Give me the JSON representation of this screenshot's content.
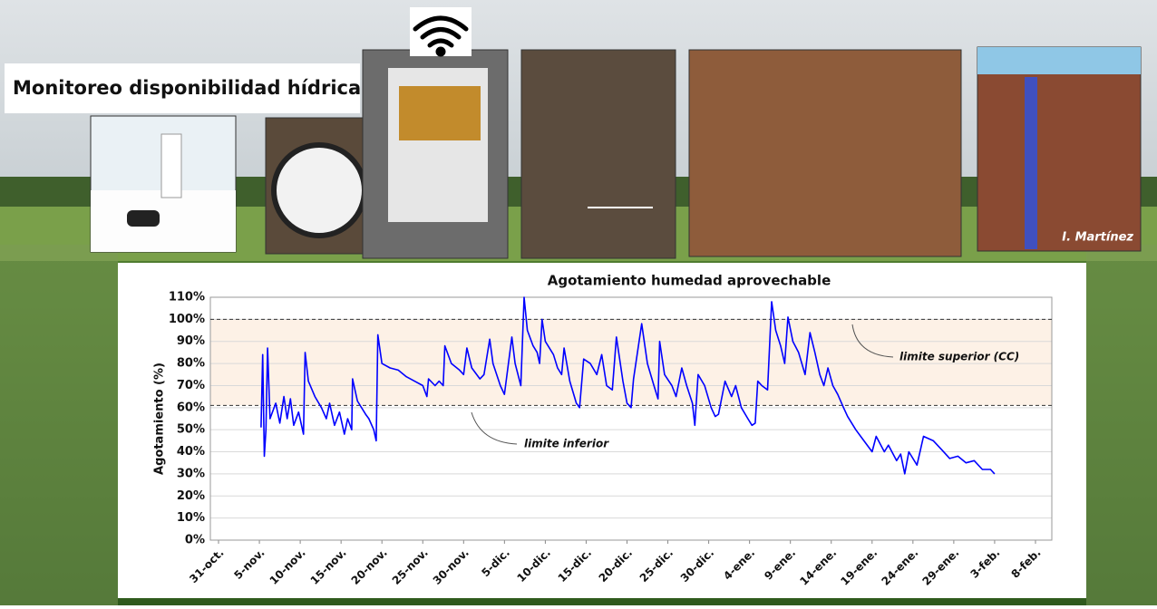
{
  "header": {
    "title": "Monitoreo disponibilidad hídrica"
  },
  "photo_credit": "I. Martínez",
  "chart_data": {
    "type": "line",
    "title": "Agotamiento humedad aprovechable",
    "y_label": "Agotamiento (%)",
    "color": "#0000ff",
    "grid": true,
    "xlim": [
      -1,
      102
    ],
    "xticks": [
      {
        "value": 0,
        "label": "31-oct."
      },
      {
        "value": 5,
        "label": "5-nov."
      },
      {
        "value": 10,
        "label": "10-nov."
      },
      {
        "value": 15,
        "label": "15-nov."
      },
      {
        "value": 20,
        "label": "20-nov."
      },
      {
        "value": 25,
        "label": "25-nov."
      },
      {
        "value": 30,
        "label": "30-nov."
      },
      {
        "value": 35,
        "label": "5-dic."
      },
      {
        "value": 40,
        "label": "10-dic."
      },
      {
        "value": 45,
        "label": "15-dic."
      },
      {
        "value": 50,
        "label": "20-dic."
      },
      {
        "value": 55,
        "label": "25-dic."
      },
      {
        "value": 60,
        "label": "30-dic."
      },
      {
        "value": 65,
        "label": "4-ene."
      },
      {
        "value": 70,
        "label": "9-ene."
      },
      {
        "value": 75,
        "label": "14-ene."
      },
      {
        "value": 80,
        "label": "19-ene."
      },
      {
        "value": 85,
        "label": "24-ene."
      },
      {
        "value": 90,
        "label": "29-ene."
      },
      {
        "value": 95,
        "label": "3-feb."
      },
      {
        "value": 100,
        "label": "8-feb."
      }
    ],
    "ylim": [
      0,
      110
    ],
    "yticks": [
      {
        "value": 0,
        "label": "0%"
      },
      {
        "value": 10,
        "label": "10%"
      },
      {
        "value": 20,
        "label": "20%"
      },
      {
        "value": 30,
        "label": "30%"
      },
      {
        "value": 40,
        "label": "40%"
      },
      {
        "value": 50,
        "label": "50%"
      },
      {
        "value": 60,
        "label": "60%"
      },
      {
        "value": 70,
        "label": "70%"
      },
      {
        "value": 80,
        "label": "80%"
      },
      {
        "value": 90,
        "label": "90%"
      },
      {
        "value": 100,
        "label": "100%"
      },
      {
        "value": 110,
        "label": "110%"
      }
    ],
    "reference_lines": [
      {
        "value": 100,
        "label": "limite superior (CC)"
      },
      {
        "value": 61,
        "label": "limite inferior"
      }
    ],
    "x": [
      5.2,
      5.4,
      5.6,
      5.8,
      6.0,
      6.3,
      7.0,
      7.5,
      8.0,
      8.4,
      8.8,
      9.2,
      9.8,
      10.4,
      10.6,
      11.0,
      11.8,
      12.6,
      13.2,
      13.6,
      14.2,
      14.8,
      15.4,
      15.8,
      16.3,
      16.4,
      17,
      18,
      18.4,
      19.0,
      19.3,
      19.5,
      20,
      21,
      22,
      23,
      24,
      25,
      25.5,
      25.7,
      26.5,
      27,
      27.5,
      27.7,
      28.5,
      29.5,
      30,
      30.4,
      31,
      32,
      32.5,
      33.2,
      33.6,
      34.5,
      35,
      35.9,
      36.3,
      37,
      37.4,
      37.8,
      38.5,
      39,
      39.3,
      39.6,
      40,
      41,
      41.5,
      42,
      42.3,
      43,
      43.8,
      44.2,
      44.7,
      45.5,
      46.3,
      46.9,
      47.5,
      48.2,
      48.7,
      49.5,
      50,
      50.5,
      50.8,
      51.8,
      52.5,
      53.3,
      53.8,
      54,
      54.6,
      55.5,
      56,
      56.7,
      57.3,
      58,
      58.3,
      58.7,
      59.5,
      60.3,
      60.8,
      61.2,
      62,
      62.8,
      63.3,
      64,
      64.8,
      65.3,
      65.7,
      66,
      66.5,
      67.2,
      67.7,
      68.2,
      68.8,
      69.3,
      69.7,
      70.3,
      71,
      71.8,
      72.4,
      73,
      73.6,
      74.1,
      74.6,
      75.2,
      75.8,
      76.5,
      77,
      78,
      79,
      80,
      80.5,
      81.5,
      82,
      83,
      83.5,
      84,
      84.5,
      85.5,
      86.3,
      87.5,
      88.5,
      89.5,
      90.5,
      91.5,
      92.5,
      93.5,
      94.5,
      95
    ],
    "values": [
      51,
      84,
      38,
      50,
      87,
      55,
      62,
      53,
      65,
      55,
      64,
      52,
      58,
      48,
      85,
      72,
      65,
      60,
      55,
      62,
      52,
      58,
      48,
      55,
      50,
      73,
      63,
      57,
      55,
      50,
      45,
      93,
      80,
      78,
      77,
      74,
      72,
      70,
      65,
      73,
      70,
      72,
      70,
      88,
      80,
      77,
      75,
      87,
      78,
      73,
      75,
      91,
      80,
      70,
      66,
      92,
      80,
      70,
      110,
      95,
      88,
      85,
      80,
      100,
      90,
      84,
      78,
      75,
      87,
      72,
      62,
      60,
      82,
      80,
      75,
      84,
      70,
      68,
      92,
      72,
      62,
      60,
      73,
      98,
      80,
      70,
      64,
      90,
      75,
      70,
      65,
      78,
      70,
      62,
      52,
      75,
      70,
      60,
      56,
      57,
      72,
      65,
      70,
      60,
      55,
      52,
      53,
      72,
      70,
      68,
      108,
      95,
      88,
      80,
      101,
      90,
      85,
      75,
      94,
      85,
      75,
      70,
      78,
      70,
      66,
      60,
      56,
      50,
      45,
      40,
      47,
      40,
      43,
      36,
      39,
      30,
      40,
      34,
      47,
      45,
      41,
      37,
      38,
      35,
      36,
      32,
      32,
      30
    ]
  }
}
